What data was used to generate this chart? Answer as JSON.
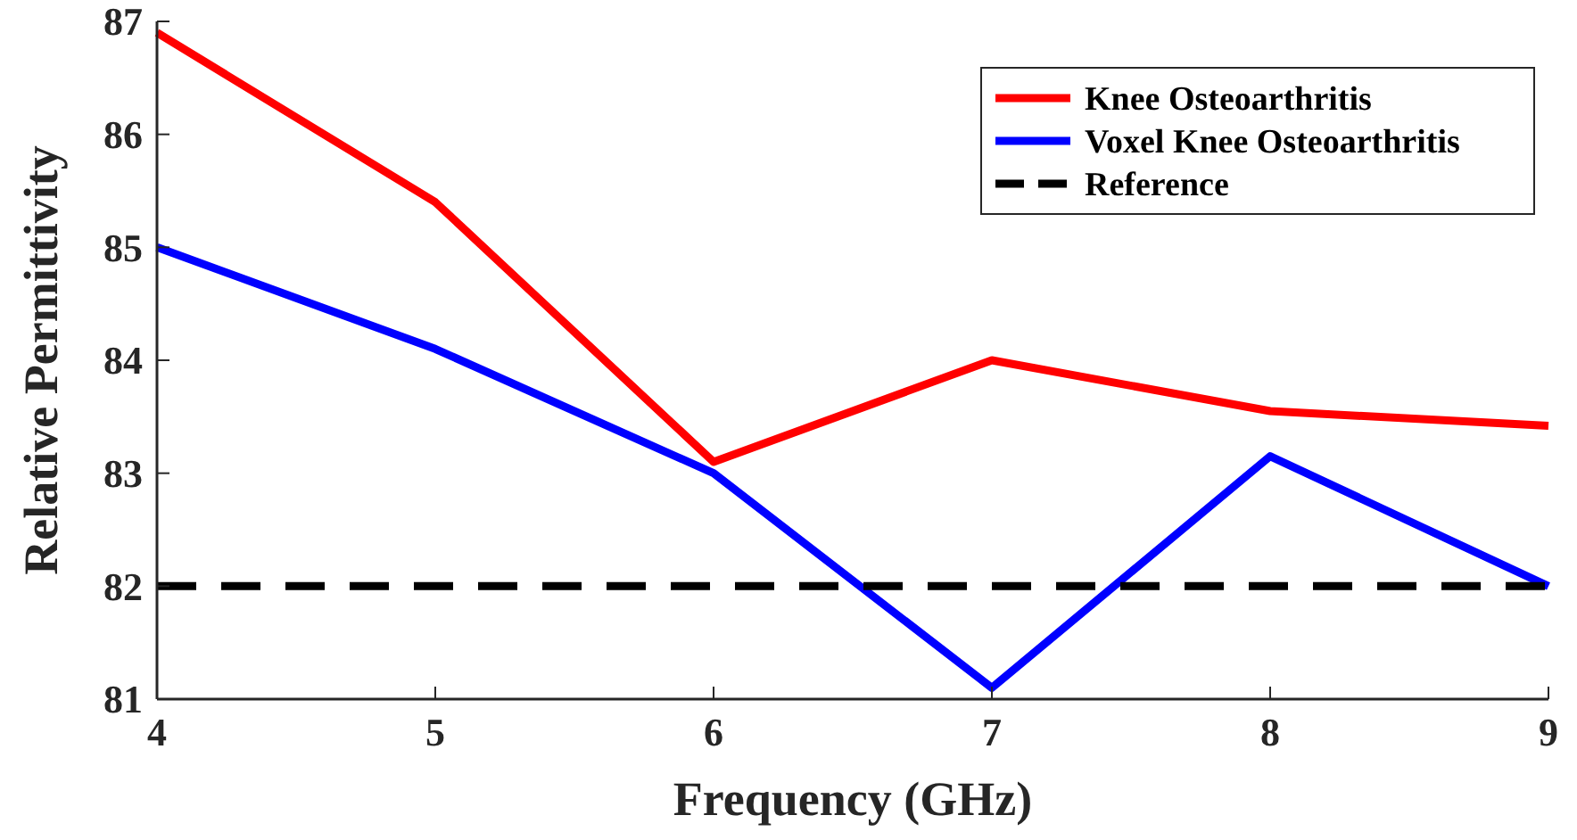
{
  "chart_data": {
    "type": "line",
    "xlabel": "Frequency (GHz)",
    "ylabel": "Relative Permittivity",
    "x": [
      4,
      5,
      6,
      7,
      8,
      9
    ],
    "series": [
      {
        "name": "Knee Osteoarthritis",
        "color": "#ff0000",
        "values": [
          86.9,
          85.4,
          83.1,
          84.0,
          83.55,
          83.42
        ]
      },
      {
        "name": "Voxel Knee Osteoarthritis",
        "color": "#0000ff",
        "values": [
          85.0,
          84.1,
          83.0,
          81.1,
          83.15,
          82.0
        ]
      },
      {
        "name": "Reference",
        "color": "#000000",
        "values": [
          82,
          82,
          82,
          82,
          82,
          82
        ],
        "line_style": "dashed"
      }
    ],
    "xlim": [
      4,
      9
    ],
    "ylim": [
      81,
      87
    ],
    "xticks": [
      4,
      5,
      6,
      7,
      8,
      9
    ],
    "yticks": [
      81,
      82,
      83,
      84,
      85,
      86,
      87
    ],
    "grid": false,
    "legend": "top right",
    "marker": "none"
  }
}
